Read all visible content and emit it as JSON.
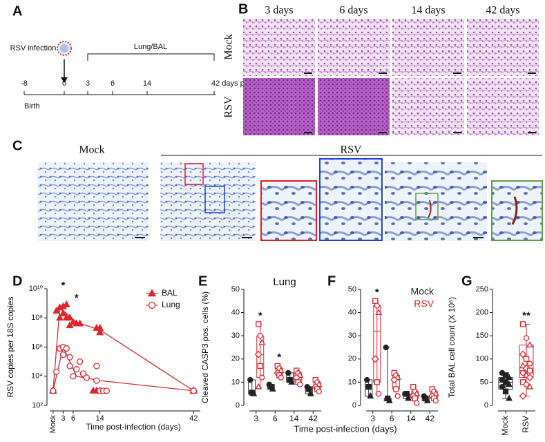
{
  "panel_labels": [
    "A",
    "B",
    "C",
    "D",
    "E",
    "F",
    "G"
  ],
  "timeline": {
    "event": "RSV infection",
    "period": "Lung/BAL",
    "ticks": [
      "-8",
      "0",
      "3",
      "6",
      "14",
      "42 days p. i."
    ],
    "birth": "Birth"
  },
  "histology": {
    "columns": [
      "3 days",
      "6 days",
      "14 days",
      "42 days"
    ],
    "rows": [
      "Mock",
      "RSV"
    ]
  },
  "ihc": {
    "mock": "Mock",
    "rsv": "RSV"
  },
  "chart_data": [
    {
      "type": "scatter",
      "log_y": true,
      "ylabel": "RSV copies per 18S copies",
      "xlabel": "Time post-infection (days)",
      "xlim": [
        -1,
        44
      ],
      "ylim": [
        100,
        10000000000
      ],
      "yticks": [
        {
          "value": 100,
          "label": "10²"
        },
        {
          "value": 10000,
          "label": "10⁴"
        },
        {
          "value": 1000000,
          "label": "10⁶"
        },
        {
          "value": 100000000,
          "label": "10⁸"
        },
        {
          "value": 10000000000,
          "label": "10¹⁰"
        }
      ],
      "xticks": [
        {
          "value": 0,
          "label": "Mock"
        },
        3,
        6,
        14,
        42
      ],
      "legend": "upper right",
      "series": [
        {
          "name": "BAL",
          "color": "#e0262b",
          "marker": "triangle",
          "filled": true,
          "x": [
            0,
            0,
            0,
            1,
            2,
            2,
            3,
            3,
            4,
            4,
            5,
            5,
            6,
            7,
            8,
            12,
            13,
            14,
            14,
            13,
            14,
            42,
            42,
            42,
            42,
            42
          ],
          "values": [
            1000,
            1000,
            1000,
            300000000,
            500000000,
            100000000,
            600000000,
            200000000,
            800000000,
            100000000,
            30000000,
            100000000,
            50000000,
            40000000,
            40000000,
            1000,
            20000000,
            10000000,
            20000000,
            1000,
            1000,
            1000,
            1000,
            1000,
            1000,
            1000
          ],
          "line_x": [
            0,
            2,
            7,
            14,
            42
          ],
          "line_values": [
            1000,
            500000000,
            50000000,
            15000000,
            1000
          ]
        },
        {
          "name": "Lung",
          "color": "#e0262b",
          "marker": "circle",
          "filled": false,
          "x": [
            0,
            0,
            0,
            1,
            2,
            3,
            3,
            4,
            5,
            5,
            6,
            7,
            8,
            9,
            10,
            13,
            13,
            14,
            15,
            16,
            42,
            42,
            42,
            42
          ],
          "values": [
            1000,
            1000,
            1000,
            20000,
            800000,
            1000000,
            300000,
            800000,
            200000,
            50000,
            10000,
            30000,
            100000,
            15000,
            8000,
            50000,
            5000,
            1000,
            1000,
            1000,
            1000,
            1000,
            1000,
            1000
          ],
          "line_x": [
            0,
            3,
            7,
            14,
            42
          ],
          "line_values": [
            1000,
            1000000,
            10000,
            5000,
            1000
          ]
        }
      ],
      "annotations": [
        {
          "x": 3,
          "text": "*"
        },
        {
          "x": 7,
          "text": "*"
        }
      ]
    },
    {
      "type": "box",
      "title": "Lung",
      "ylabel": "Cleaved CASP3 pos. cells (%)",
      "xlabel": "Time post-infection (days)",
      "ylim": [
        0,
        50
      ],
      "yticks": [
        0,
        10,
        20,
        30,
        40,
        50
      ],
      "categories": [
        "3",
        "6",
        "14",
        "42"
      ],
      "series": [
        {
          "color": "#222222",
          "filled": true,
          "boxes": [
            {
              "min": 5,
              "q1": 5,
              "median": 5.5,
              "q3": 11,
              "max": 11,
              "points": [
                11,
                5.5,
                5
              ]
            },
            {
              "min": 7,
              "q1": 7,
              "median": 8,
              "q3": 9,
              "max": 9,
              "points": [
                9,
                8,
                7
              ]
            },
            {
              "min": 10,
              "q1": 10,
              "median": 11,
              "q3": 14,
              "max": 14,
              "points": [
                14,
                11,
                10
              ]
            },
            {
              "min": 5,
              "q1": 5,
              "median": 7,
              "q3": 8,
              "max": 8,
              "points": [
                8,
                7,
                5
              ]
            }
          ]
        },
        {
          "color": "#e0262b",
          "filled": false,
          "boxes": [
            {
              "min": 8,
              "q1": 12,
              "median": 22,
              "q3": 30,
              "max": 35,
              "points": [
                35,
                30,
                27,
                22,
                17,
                12,
                8
              ]
            },
            {
              "min": 12,
              "q1": 13,
              "median": 14,
              "q3": 16,
              "max": 17,
              "points": [
                17,
                16,
                15,
                14,
                13,
                12
              ]
            },
            {
              "min": 9,
              "q1": 10,
              "median": 12,
              "q3": 14,
              "max": 15,
              "points": [
                15,
                14,
                13,
                12,
                10,
                9
              ]
            },
            {
              "min": 6,
              "q1": 7,
              "median": 8,
              "q3": 10,
              "max": 11,
              "points": [
                11,
                10,
                9,
                8,
                7,
                6
              ]
            }
          ]
        }
      ],
      "annotations": [
        {
          "category": 0,
          "series": 1,
          "text": "*"
        },
        {
          "category": 1,
          "series": 1,
          "text": "*"
        }
      ]
    },
    {
      "type": "box",
      "ylim": [
        0,
        50
      ],
      "yticks": [
        0,
        10,
        20,
        30,
        40,
        50
      ],
      "categories": [
        "3",
        "6",
        "14",
        "42"
      ],
      "legend": "upper right",
      "series": [
        {
          "name": "Mock",
          "color": "#222222",
          "filled": true,
          "boxes": [
            {
              "min": 4,
              "q1": 4,
              "median": 8,
              "q3": 11,
              "max": 11,
              "points": [
                11,
                8,
                4
              ]
            },
            {
              "min": 2,
              "q1": 2,
              "median": 3,
              "q3": 3,
              "max": 25,
              "points": [
                25,
                3,
                2
              ]
            },
            {
              "min": 3,
              "q1": 3,
              "median": 5,
              "q3": 5,
              "max": 5,
              "points": [
                5,
                5,
                3
              ]
            },
            {
              "min": 2,
              "q1": 2,
              "median": 3,
              "q3": 4,
              "max": 4,
              "points": [
                4,
                3,
                2
              ]
            }
          ]
        },
        {
          "name": "RSV",
          "color": "#e0262b",
          "filled": false,
          "boxes": [
            {
              "min": 5,
              "q1": 10,
              "median": 32,
              "q3": 43,
              "max": 45,
              "points": [
                45,
                43,
                40,
                20,
                10,
                5
              ]
            },
            {
              "min": 4,
              "q1": 7,
              "median": 11,
              "q3": 13,
              "max": 14,
              "points": [
                14,
                13,
                12,
                11,
                7,
                4
              ]
            },
            {
              "min": 1,
              "q1": 3,
              "median": 4,
              "q3": 6,
              "max": 8,
              "points": [
                8,
                6,
                5,
                4,
                3,
                1
              ]
            },
            {
              "min": 2,
              "q1": 3,
              "median": 4.5,
              "q3": 6,
              "max": 7,
              "points": [
                7,
                6,
                5,
                4,
                3,
                2
              ]
            }
          ]
        }
      ],
      "annotations": [
        {
          "category": 0,
          "series": 1,
          "text": "*"
        }
      ]
    },
    {
      "type": "box",
      "ylabel": "Total BAL cell count (X 10⁶)",
      "ylim": [
        0,
        250
      ],
      "yticks": [
        0,
        50,
        100,
        150,
        200,
        250
      ],
      "categories": [
        "Mock",
        "RSV"
      ],
      "rotate_labels": true,
      "series": [
        {
          "colors": [
            "#222222",
            "#e0262b"
          ],
          "filled": [
            true,
            false
          ],
          "boxes": [
            {
              "min": 15,
              "q1": 35,
              "median": 50,
              "q3": 60,
              "max": 70,
              "points": [
                70,
                65,
                60,
                55,
                50,
                45,
                40,
                30,
                15
              ]
            },
            {
              "min": 20,
              "q1": 60,
              "median": 75,
              "q3": 130,
              "max": 175,
              "points": [
                175,
                145,
                130,
                110,
                100,
                90,
                85,
                80,
                75,
                70,
                65,
                60,
                50,
                45,
                40,
                20
              ]
            }
          ]
        }
      ],
      "annotations": [
        {
          "category": 1,
          "series": 0,
          "text": "**"
        }
      ]
    }
  ]
}
